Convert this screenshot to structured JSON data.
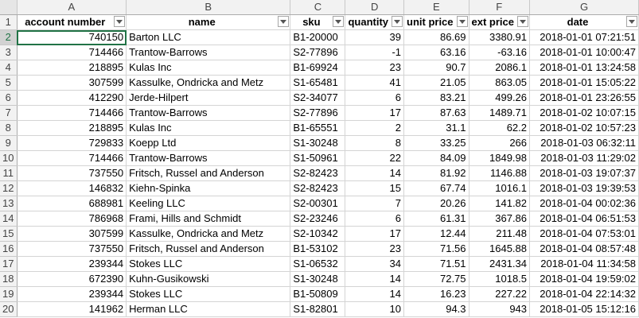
{
  "columns": [
    "A",
    "B",
    "C",
    "D",
    "E",
    "F",
    "G"
  ],
  "header_row_number": "1",
  "headers": [
    "account number",
    "name",
    "sku",
    "quantity",
    "unit price",
    "ext price",
    "date"
  ],
  "rows": [
    {
      "n": "2",
      "cells": [
        "740150",
        "Barton LLC",
        "B1-20000",
        "39",
        "86.69",
        "3380.91",
        "2018-01-01 07:21:51"
      ]
    },
    {
      "n": "3",
      "cells": [
        "714466",
        "Trantow-Barrows",
        "S2-77896",
        "-1",
        "63.16",
        "-63.16",
        "2018-01-01 10:00:47"
      ]
    },
    {
      "n": "4",
      "cells": [
        "218895",
        "Kulas Inc",
        "B1-69924",
        "23",
        "90.7",
        "2086.1",
        "2018-01-01 13:24:58"
      ]
    },
    {
      "n": "5",
      "cells": [
        "307599",
        "Kassulke, Ondricka and Metz",
        "S1-65481",
        "41",
        "21.05",
        "863.05",
        "2018-01-01 15:05:22"
      ]
    },
    {
      "n": "6",
      "cells": [
        "412290",
        "Jerde-Hilpert",
        "S2-34077",
        "6",
        "83.21",
        "499.26",
        "2018-01-01 23:26:55"
      ]
    },
    {
      "n": "7",
      "cells": [
        "714466",
        "Trantow-Barrows",
        "S2-77896",
        "17",
        "87.63",
        "1489.71",
        "2018-01-02 10:07:15"
      ]
    },
    {
      "n": "8",
      "cells": [
        "218895",
        "Kulas Inc",
        "B1-65551",
        "2",
        "31.1",
        "62.2",
        "2018-01-02 10:57:23"
      ]
    },
    {
      "n": "9",
      "cells": [
        "729833",
        "Koepp Ltd",
        "S1-30248",
        "8",
        "33.25",
        "266",
        "2018-01-03 06:32:11"
      ]
    },
    {
      "n": "10",
      "cells": [
        "714466",
        "Trantow-Barrows",
        "S1-50961",
        "22",
        "84.09",
        "1849.98",
        "2018-01-03 11:29:02"
      ]
    },
    {
      "n": "11",
      "cells": [
        "737550",
        "Fritsch, Russel and Anderson",
        "S2-82423",
        "14",
        "81.92",
        "1146.88",
        "2018-01-03 19:07:37"
      ]
    },
    {
      "n": "12",
      "cells": [
        "146832",
        "Kiehn-Spinka",
        "S2-82423",
        "15",
        "67.74",
        "1016.1",
        "2018-01-03 19:39:53"
      ]
    },
    {
      "n": "13",
      "cells": [
        "688981",
        "Keeling LLC",
        "S2-00301",
        "7",
        "20.26",
        "141.82",
        "2018-01-04 00:02:36"
      ]
    },
    {
      "n": "14",
      "cells": [
        "786968",
        "Frami, Hills and Schmidt",
        "S2-23246",
        "6",
        "61.31",
        "367.86",
        "2018-01-04 06:51:53"
      ]
    },
    {
      "n": "15",
      "cells": [
        "307599",
        "Kassulke, Ondricka and Metz",
        "S2-10342",
        "17",
        "12.44",
        "211.48",
        "2018-01-04 07:53:01"
      ]
    },
    {
      "n": "16",
      "cells": [
        "737550",
        "Fritsch, Russel and Anderson",
        "B1-53102",
        "23",
        "71.56",
        "1645.88",
        "2018-01-04 08:57:48"
      ]
    },
    {
      "n": "17",
      "cells": [
        "239344",
        "Stokes LLC",
        "S1-06532",
        "34",
        "71.51",
        "2431.34",
        "2018-01-04 11:34:58"
      ]
    },
    {
      "n": "18",
      "cells": [
        "672390",
        "Kuhn-Gusikowski",
        "S1-30248",
        "14",
        "72.75",
        "1018.5",
        "2018-01-04 19:59:02"
      ]
    },
    {
      "n": "19",
      "cells": [
        "239344",
        "Stokes LLC",
        "B1-50809",
        "14",
        "16.23",
        "227.22",
        "2018-01-04 22:14:32"
      ]
    },
    {
      "n": "20",
      "cells": [
        "141962",
        "Herman LLC",
        "S1-82801",
        "10",
        "94.3",
        "943",
        "2018-01-05 15:12:16"
      ]
    }
  ],
  "selected_cell": "A2"
}
